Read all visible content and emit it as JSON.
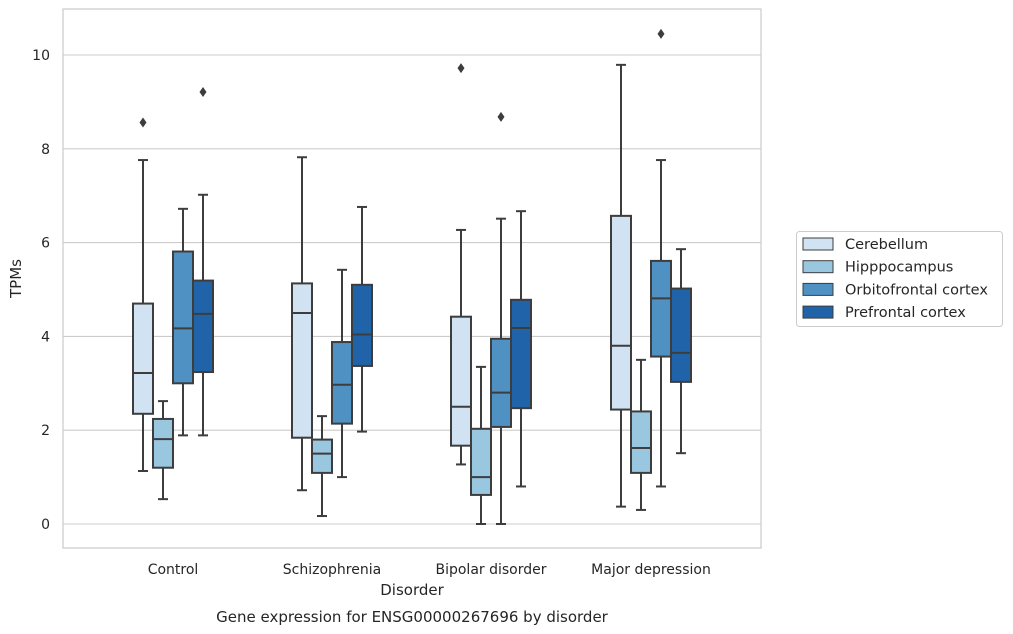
{
  "chart_data": {
    "type": "box",
    "title": "",
    "caption": "Gene expression for ENSG00000267696 by disorder",
    "xlabel": "Disorder",
    "ylabel": "TPMs",
    "ylim": [
      -0.5,
      11.0
    ],
    "yticks": [
      0,
      2,
      4,
      6,
      8,
      10
    ],
    "grid": "horizontal",
    "legend_position": "right",
    "categories": [
      "Control",
      "Schizophrenia",
      "Bipolar disorder",
      "Major depression"
    ],
    "series": [
      {
        "name": "Cerebellum",
        "color": "#d1e2f2",
        "boxes": [
          {
            "whisker_low": 1.13,
            "q1": 2.35,
            "median": 3.22,
            "q3": 4.7,
            "whisker_high": 7.76,
            "outliers": [
              8.56
            ]
          },
          {
            "whisker_low": 0.72,
            "q1": 1.84,
            "median": 4.5,
            "q3": 5.13,
            "whisker_high": 7.82,
            "outliers": []
          },
          {
            "whisker_low": 1.27,
            "q1": 1.67,
            "median": 2.5,
            "q3": 4.42,
            "whisker_high": 6.27,
            "outliers": [
              9.72
            ]
          },
          {
            "whisker_low": 0.37,
            "q1": 2.44,
            "median": 3.8,
            "q3": 6.57,
            "whisker_high": 9.79,
            "outliers": []
          }
        ]
      },
      {
        "name": "Hipppocampus",
        "color": "#9ac7e0",
        "boxes": [
          {
            "whisker_low": 0.53,
            "q1": 1.2,
            "median": 1.81,
            "q3": 2.24,
            "whisker_high": 2.62,
            "outliers": []
          },
          {
            "whisker_low": 0.17,
            "q1": 1.09,
            "median": 1.5,
            "q3": 1.8,
            "whisker_high": 2.3,
            "outliers": []
          },
          {
            "whisker_low": 0.0,
            "q1": 0.62,
            "median": 1.0,
            "q3": 2.03,
            "whisker_high": 3.35,
            "outliers": []
          },
          {
            "whisker_low": 0.3,
            "q1": 1.09,
            "median": 1.62,
            "q3": 2.4,
            "whisker_high": 3.5,
            "outliers": []
          }
        ]
      },
      {
        "name": "Orbitofrontal cortex",
        "color": "#4f91c3",
        "boxes": [
          {
            "whisker_low": 1.89,
            "q1": 3.0,
            "median": 4.17,
            "q3": 5.81,
            "whisker_high": 6.72,
            "outliers": []
          },
          {
            "whisker_low": 1.0,
            "q1": 2.14,
            "median": 2.97,
            "q3": 3.88,
            "whisker_high": 5.42,
            "outliers": []
          },
          {
            "whisker_low": 0.0,
            "q1": 2.07,
            "median": 2.8,
            "q3": 3.95,
            "whisker_high": 6.51,
            "outliers": [
              8.68
            ]
          },
          {
            "whisker_low": 0.8,
            "q1": 3.57,
            "median": 4.81,
            "q3": 5.61,
            "whisker_high": 7.76,
            "outliers": [
              10.45
            ]
          }
        ]
      },
      {
        "name": "Prefrontal cortex",
        "color": "#2063a9",
        "boxes": [
          {
            "whisker_low": 1.89,
            "q1": 3.24,
            "median": 4.48,
            "q3": 5.19,
            "whisker_high": 7.02,
            "outliers": [
              9.21
            ]
          },
          {
            "whisker_low": 1.97,
            "q1": 3.37,
            "median": 4.04,
            "q3": 5.1,
            "whisker_high": 6.76,
            "outliers": []
          },
          {
            "whisker_low": 0.8,
            "q1": 2.47,
            "median": 4.18,
            "q3": 4.78,
            "whisker_high": 6.67,
            "outliers": []
          },
          {
            "whisker_low": 1.51,
            "q1": 3.03,
            "median": 3.65,
            "q3": 5.02,
            "whisker_high": 5.86,
            "outliers": []
          }
        ]
      }
    ]
  },
  "colors": {
    "frame": "#cccccc",
    "grid": "#cccccc",
    "box_line": "#3d3d3d",
    "background": "#ffffff"
  }
}
